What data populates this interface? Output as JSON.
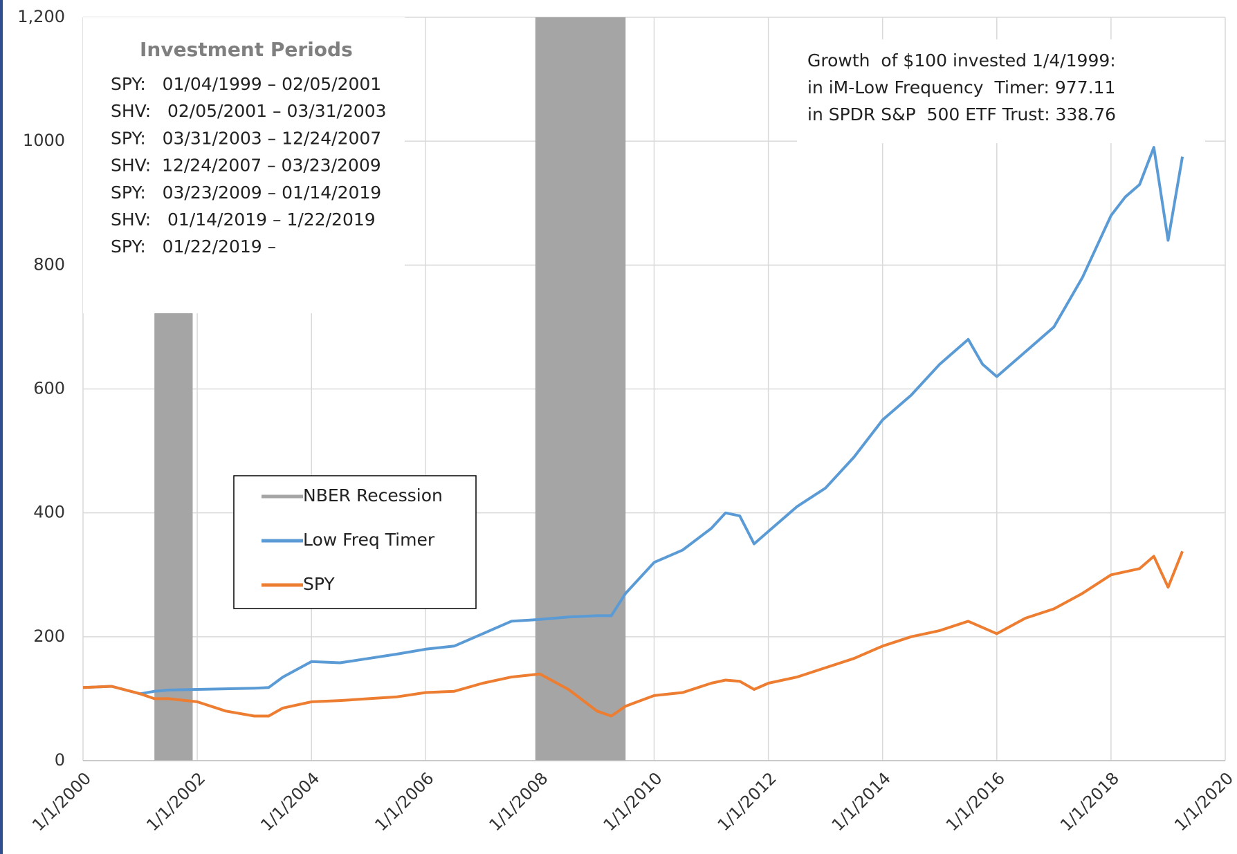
{
  "chart_data": {
    "type": "line",
    "x": [
      2000,
      2000.5,
      2001,
      2001.25,
      2001.5,
      2002,
      2002.5,
      2003,
      2003.25,
      2003.5,
      2004,
      2004.5,
      2005,
      2005.5,
      2006,
      2006.5,
      2007,
      2007.5,
      2008,
      2008.5,
      2009,
      2009.25,
      2009.5,
      2010,
      2010.5,
      2011,
      2011.25,
      2011.5,
      2011.75,
      2012,
      2012.5,
      2013,
      2013.5,
      2014,
      2014.5,
      2015,
      2015.5,
      2015.75,
      2016,
      2016.5,
      2017,
      2017.5,
      2018,
      2018.25,
      2018.5,
      2018.75,
      2019,
      2019.25
    ],
    "series": [
      {
        "name": "Low Freq Timer",
        "color": "#5b9bd5",
        "values": [
          118,
          120,
          108,
          112,
          114,
          115,
          116,
          117,
          118,
          135,
          160,
          158,
          165,
          172,
          180,
          185,
          205,
          225,
          228,
          232,
          234,
          234,
          270,
          320,
          340,
          375,
          400,
          395,
          350,
          370,
          410,
          440,
          490,
          550,
          590,
          640,
          680,
          640,
          620,
          660,
          700,
          780,
          880,
          910,
          930,
          990,
          840,
          975
        ]
      },
      {
        "name": "SPY",
        "color": "#ed7d31",
        "values": [
          118,
          120,
          108,
          100,
          100,
          95,
          80,
          72,
          72,
          85,
          95,
          97,
          100,
          103,
          110,
          112,
          125,
          135,
          140,
          115,
          80,
          72,
          88,
          105,
          110,
          125,
          130,
          128,
          115,
          125,
          135,
          150,
          165,
          185,
          200,
          210,
          225,
          215,
          205,
          230,
          245,
          270,
          300,
          305,
          310,
          330,
          280,
          338
        ]
      }
    ],
    "bands": {
      "name": "NBER Recession",
      "color": "#a5a5a5",
      "ranges": [
        [
          2001.25,
          2001.92
        ],
        [
          2007.92,
          2009.5
        ]
      ]
    },
    "xlim": [
      2000,
      2020
    ],
    "xticks": [
      {
        "value": 2000,
        "label": "1/1/2000"
      },
      {
        "value": 2002,
        "label": "1/1/2002"
      },
      {
        "value": 2004,
        "label": "1/1/2004"
      },
      {
        "value": 2006,
        "label": "1/1/2006"
      },
      {
        "value": 2008,
        "label": "1/1/2008"
      },
      {
        "value": 2010,
        "label": "1/1/2010"
      },
      {
        "value": 2012,
        "label": "1/1/2012"
      },
      {
        "value": 2014,
        "label": "1/1/2014"
      },
      {
        "value": 2016,
        "label": "1/1/2016"
      },
      {
        "value": 2018,
        "label": "1/1/2018"
      },
      {
        "value": 2020,
        "label": "1/1/2020"
      }
    ],
    "ylim": [
      0,
      1200
    ],
    "yticks": [
      0,
      200,
      400,
      600,
      800,
      1000,
      {
        "value": 1200,
        "label": "1,200"
      }
    ],
    "grid": true,
    "periods": {
      "title": "Investment Periods",
      "lines": [
        "SPY:   01/04/1999 – 02/05/2001",
        "SHV:   02/05/2001 – 03/31/2003",
        "SPY:   03/31/2003 – 12/24/2007",
        "SHV:  12/24/2007 – 03/23/2009",
        "SPY:   03/23/2009 – 01/14/2019",
        "SHV:   01/14/2019 – 1/22/2019",
        "SPY:   01/22/2019 –"
      ]
    },
    "growth": [
      "Growth  of $100 invested 1/4/1999:",
      "in iM-Low Frequency  Timer: 977.11",
      "in SPDR S&P  500 ETF Trust: 338.76"
    ]
  }
}
